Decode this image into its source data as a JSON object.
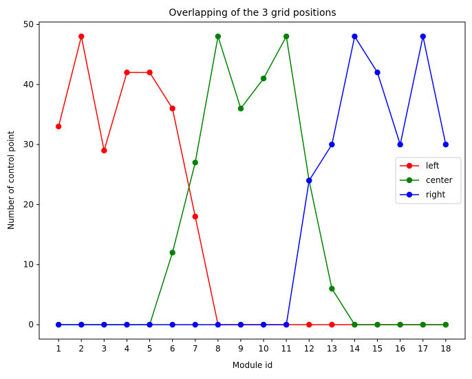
{
  "chart_data": {
    "type": "line",
    "title": "Overlapping of the 3 grid positions",
    "xlabel": "Module id",
    "ylabel": "Number of control point",
    "x": [
      1,
      2,
      3,
      4,
      5,
      6,
      7,
      8,
      9,
      10,
      11,
      12,
      13,
      14,
      15,
      16,
      17,
      18
    ],
    "x_tick_labels": [
      "1",
      "2",
      "3",
      "4",
      "5",
      "6",
      "7",
      "8",
      "9",
      "10",
      "11",
      "12",
      "13",
      "14",
      "15",
      "16",
      "17",
      "18"
    ],
    "y_ticks": [
      0,
      10,
      20,
      30,
      40,
      50
    ],
    "y_tick_labels": [
      "0",
      "10",
      "20",
      "30",
      "40",
      "50"
    ],
    "xlim": [
      0.15,
      18.85
    ],
    "ylim": [
      -2.4,
      50.4
    ],
    "grid": false,
    "legend_position": "center-right",
    "series": [
      {
        "name": "left",
        "color": "#ff0000",
        "values": [
          33,
          48,
          29,
          42,
          42,
          36,
          18,
          0,
          0,
          0,
          0,
          0,
          0,
          0,
          0,
          0,
          0,
          0
        ]
      },
      {
        "name": "center",
        "color": "#008000",
        "values": [
          0,
          0,
          0,
          0,
          0,
          12,
          27,
          48,
          36,
          41,
          48,
          24,
          6,
          0,
          0,
          0,
          0,
          0
        ]
      },
      {
        "name": "right",
        "color": "#0000ff",
        "values": [
          0,
          0,
          0,
          0,
          0,
          0,
          0,
          0,
          0,
          0,
          0,
          24,
          30,
          48,
          42,
          30,
          48,
          30
        ]
      }
    ]
  }
}
